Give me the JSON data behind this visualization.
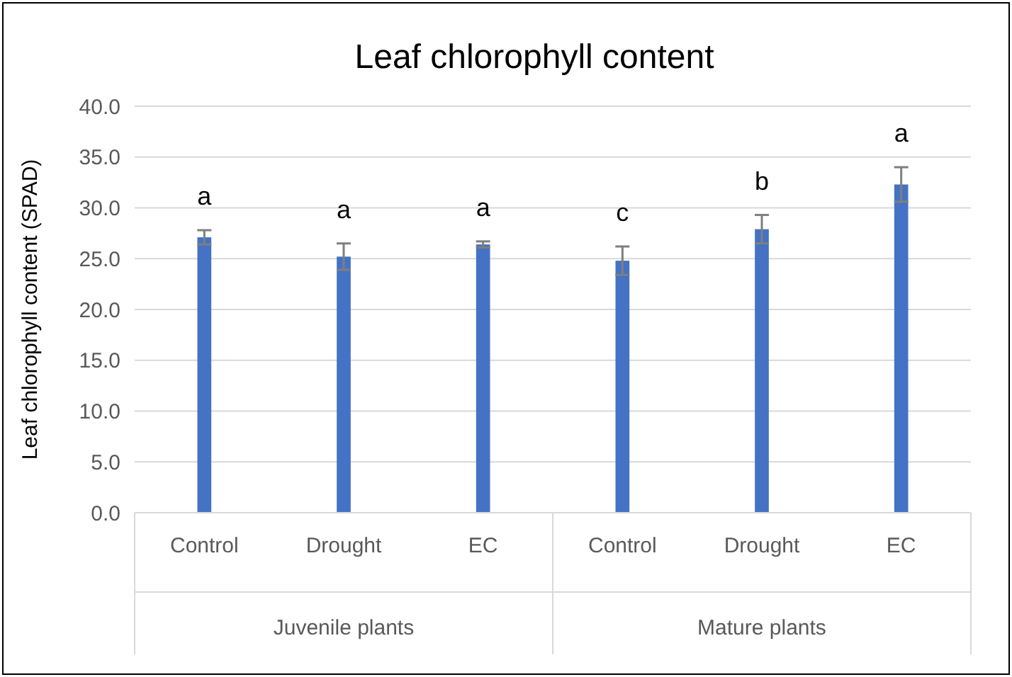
{
  "chart_data": {
    "type": "bar",
    "title": "Leaf chlorophyll content",
    "ylabel": "Leaf chlorophyll content (SPAD)",
    "categories": [
      "Control",
      "Drought",
      "EC",
      "Control",
      "Drought",
      "EC"
    ],
    "values": [
      27.1,
      25.2,
      26.4,
      24.8,
      27.9,
      32.3
    ],
    "errors": [
      0.7,
      1.3,
      0.3,
      1.4,
      1.4,
      1.7
    ],
    "value_labels": [
      "a",
      "a",
      "a",
      "c",
      "b",
      "a"
    ],
    "annotations": [
      "Juvenile plants",
      "Mature plants"
    ],
    "color": "#4472c4",
    "ylim": [
      0,
      40
    ],
    "yticks": [
      {
        "value": 0,
        "label": "0.0"
      },
      {
        "value": 5,
        "label": "5.0"
      },
      {
        "value": 10,
        "label": "10.0"
      },
      {
        "value": 15,
        "label": "15.0"
      },
      {
        "value": 20,
        "label": "20.0"
      },
      {
        "value": 25,
        "label": "25.0"
      },
      {
        "value": 30,
        "label": "30.0"
      },
      {
        "value": 35,
        "label": "35.0"
      },
      {
        "value": 40,
        "label": "40.0"
      }
    ],
    "grid": true
  }
}
